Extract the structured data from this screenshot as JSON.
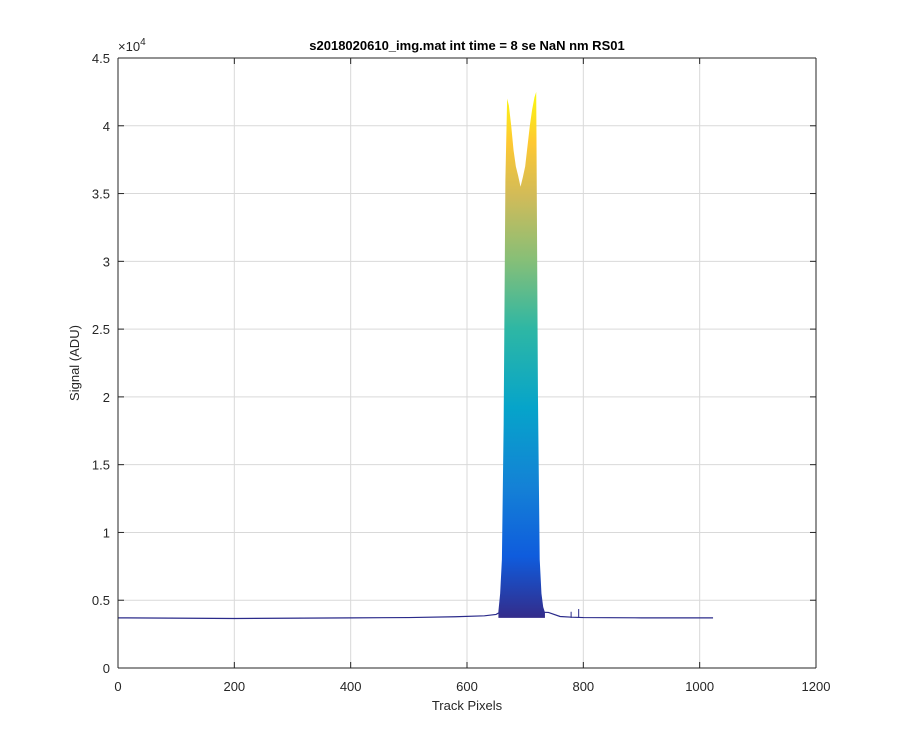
{
  "chart_data": {
    "type": "area",
    "title": "s2018020610_img.mat int time = 8 se  NaN nm RS01",
    "xlabel": "Track Pixels",
    "ylabel": "Signal (ADU)",
    "y_exponent_label": "×10",
    "y_exponent_power": "4",
    "xlim": [
      0,
      1200
    ],
    "ylim": [
      0,
      45000
    ],
    "x_ticks": [
      0,
      200,
      400,
      600,
      800,
      1000,
      1200
    ],
    "x_tick_labels": [
      "0",
      "200",
      "400",
      "600",
      "800",
      "1000",
      "1200"
    ],
    "y_ticks": [
      0,
      5000,
      10000,
      15000,
      20000,
      25000,
      30000,
      35000,
      40000,
      45000
    ],
    "y_tick_labels": [
      "0",
      "0.5",
      "1",
      "1.5",
      "2",
      "2.5",
      "3",
      "3.5",
      "4",
      "4.5"
    ],
    "grid": true,
    "colormap": "parula",
    "colors": {
      "baseline": "#2a2a8a",
      "grid": "#d9d9d9",
      "axis": "#262626"
    },
    "baseline": {
      "x": [
        0,
        200,
        400,
        500,
        580,
        630,
        650,
        660,
        740,
        760,
        780,
        800,
        900,
        1023
      ],
      "y": [
        3700,
        3650,
        3700,
        3720,
        3780,
        3850,
        3950,
        4200,
        4100,
        3800,
        3750,
        3720,
        3700,
        3700
      ]
    },
    "spikes": [
      {
        "x": 779,
        "y": 4150
      },
      {
        "x": 792,
        "y": 4350
      }
    ],
    "envelope": {
      "x": [
        654,
        657,
        660,
        663,
        666,
        669,
        672,
        676,
        680,
        684,
        688,
        692,
        696,
        700,
        704,
        708,
        712,
        716,
        719,
        722,
        725,
        728,
        731,
        734
      ],
      "y": [
        4200,
        5500,
        8000,
        18000,
        36000,
        42000,
        41500,
        40000,
        38200,
        37000,
        36300,
        35500,
        36200,
        37000,
        38500,
        40000,
        41200,
        42100,
        42500,
        20000,
        8000,
        5500,
        4500,
        4100
      ]
    }
  }
}
